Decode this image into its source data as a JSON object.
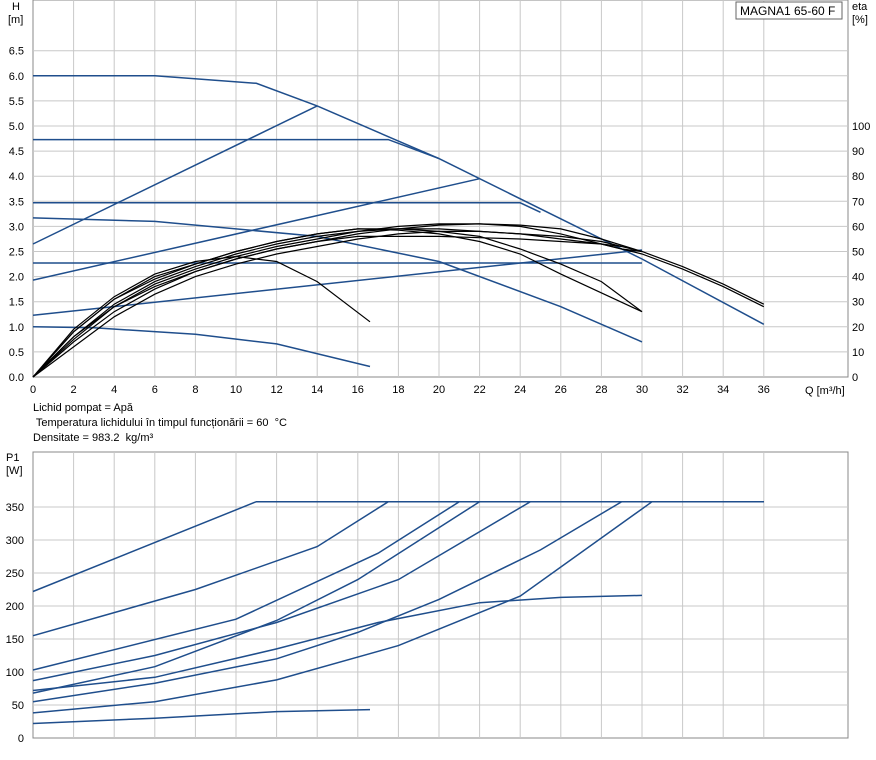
{
  "chart_data": [
    {
      "type": "line",
      "title": "MAGNA1 65-60 F",
      "xlabel": "Q [m³/h]",
      "ylabel": [
        "H",
        "[m]"
      ],
      "ylabel_right": [
        "eta",
        "[%]"
      ],
      "xlim": [
        0,
        36
      ],
      "ylim": [
        0,
        6.5
      ],
      "ylim_right": [
        0,
        100
      ],
      "grid": true,
      "x_ticks": [
        "0",
        "2",
        "4",
        "6",
        "8",
        "10",
        "12",
        "14",
        "16",
        "18",
        "20",
        "22",
        "24",
        "26",
        "28",
        "30",
        "32",
        "34",
        "36"
      ],
      "y_ticks": [
        "0.0",
        "0.5",
        "1.0",
        "1.5",
        "2.0",
        "2.5",
        "3.0",
        "3.5",
        "4.0",
        "4.5",
        "5.0",
        "5.5",
        "6.0",
        "6.5"
      ],
      "y_right_ticks": [
        "0",
        "10",
        "20",
        "30",
        "40",
        "50",
        "60",
        "70",
        "80",
        "90",
        "100"
      ],
      "colors": {
        "blue": "#1f4e8c",
        "black": "#000000",
        "grid": "#c8c8c8"
      },
      "head_series": [
        {
          "points": [
            [
              0,
              6.0
            ],
            [
              6,
              6.0
            ],
            [
              11,
              5.85
            ],
            [
              14,
              5.4
            ],
            [
              20,
              4.35
            ],
            [
              30,
              2.35
            ],
            [
              36,
              1.05
            ]
          ]
        },
        {
          "points": [
            [
              0,
              4.73
            ],
            [
              17.5,
              4.73
            ],
            [
              20,
              4.35
            ]
          ]
        },
        {
          "points": [
            [
              0,
              3.47
            ],
            [
              24,
              3.47
            ],
            [
              25,
              3.28
            ]
          ]
        },
        {
          "points": [
            [
              0,
              2.27
            ],
            [
              30,
              2.27
            ]
          ]
        },
        {
          "points": [
            [
              0,
              1.0
            ],
            [
              3,
              0.98
            ],
            [
              8,
              0.85
            ],
            [
              12,
              0.66
            ],
            [
              16.6,
              0.21
            ]
          ]
        },
        {
          "points": [
            [
              0,
              3.17
            ],
            [
              6,
              3.1
            ],
            [
              14,
              2.8
            ],
            [
              20,
              2.3
            ],
            [
              26,
              1.4
            ],
            [
              30,
              0.7
            ]
          ]
        },
        {
          "points": [
            [
              0,
              2.65
            ],
            [
              14,
              5.4
            ]
          ]
        },
        {
          "points": [
            [
              0,
              1.93
            ],
            [
              22,
              3.95
            ]
          ]
        },
        {
          "points": [
            [
              0,
              1.23
            ],
            [
              30,
              2.53
            ]
          ]
        }
      ],
      "eta_series": [
        {
          "points": [
            [
              0,
              0
            ],
            [
              2,
              19
            ],
            [
              4,
              32
            ],
            [
              6,
              41
            ],
            [
              8,
              46
            ],
            [
              10,
              48
            ],
            [
              12,
              46
            ],
            [
              14,
              38
            ],
            [
              16.6,
              22
            ]
          ]
        },
        {
          "points": [
            [
              0,
              0
            ],
            [
              2,
              18
            ],
            [
              4,
              31
            ],
            [
              6,
              39
            ],
            [
              8,
              45
            ],
            [
              10,
              50
            ],
            [
              12,
              54
            ],
            [
              14,
              57
            ],
            [
              16,
              59
            ],
            [
              18,
              58.5
            ],
            [
              20,
              57
            ],
            [
              22,
              54
            ],
            [
              24,
              49
            ],
            [
              26,
              41
            ],
            [
              30,
              26
            ]
          ]
        },
        {
          "points": [
            [
              0,
              0
            ],
            [
              2,
              18
            ],
            [
              4,
              31
            ],
            [
              6,
              40
            ],
            [
              8,
              45
            ],
            [
              10,
              50
            ],
            [
              12,
              54
            ],
            [
              14,
              57
            ],
            [
              16,
              59
            ],
            [
              18,
              59
            ],
            [
              20,
              58
            ],
            [
              22,
              56
            ],
            [
              24,
              51
            ],
            [
              26,
              45
            ],
            [
              28,
              38
            ],
            [
              30,
              26
            ]
          ]
        },
        {
          "points": [
            [
              0,
              0
            ],
            [
              2,
              16
            ],
            [
              4,
              29
            ],
            [
              6,
              38
            ],
            [
              8,
              44
            ],
            [
              10,
              49
            ],
            [
              12,
              53
            ],
            [
              14,
              56
            ],
            [
              16,
              58
            ],
            [
              18,
              59
            ],
            [
              20,
              59
            ],
            [
              22,
              58
            ],
            [
              24,
              57
            ],
            [
              26,
              55
            ],
            [
              28,
              53
            ],
            [
              29,
              51
            ],
            [
              30,
              50
            ]
          ]
        },
        {
          "points": [
            [
              0,
              0
            ],
            [
              2,
              15
            ],
            [
              4,
              28
            ],
            [
              6,
              37
            ],
            [
              8,
              43
            ],
            [
              10,
              48
            ],
            [
              12,
              52
            ],
            [
              14,
              55
            ],
            [
              16,
              58
            ],
            [
              18,
              60
            ],
            [
              20,
              61
            ],
            [
              22,
              61
            ],
            [
              24,
              60
            ],
            [
              26,
              57
            ],
            [
              28,
              53
            ],
            [
              30,
              49
            ],
            [
              32,
              43
            ],
            [
              34,
              36
            ],
            [
              36,
              28
            ]
          ]
        },
        {
          "points": [
            [
              0,
              0
            ],
            [
              2,
              14
            ],
            [
              4,
              26
            ],
            [
              6,
              35
            ],
            [
              8,
              42
            ],
            [
              10,
              47
            ],
            [
              12,
              51
            ],
            [
              14,
              54
            ],
            [
              16,
              57
            ],
            [
              18,
              59
            ],
            [
              20,
              60.5
            ],
            [
              22,
              61
            ],
            [
              24,
              60.5
            ],
            [
              26,
              59
            ],
            [
              28,
              55
            ],
            [
              30,
              50
            ],
            [
              32,
              44
            ],
            [
              34,
              37
            ],
            [
              36,
              29
            ]
          ]
        },
        {
          "points": [
            [
              0,
              0
            ],
            [
              2,
              12
            ],
            [
              4,
              24
            ],
            [
              6,
              33
            ],
            [
              8,
              40
            ],
            [
              10,
              45
            ],
            [
              12,
              49
            ],
            [
              14,
              52
            ],
            [
              16,
              55
            ],
            [
              18,
              57
            ],
            [
              20,
              58
            ],
            [
              22,
              58
            ],
            [
              24,
              57
            ],
            [
              26,
              56
            ],
            [
              28,
              54
            ],
            [
              30,
              50
            ]
          ]
        },
        {
          "points": [
            [
              0,
              0
            ],
            [
              2,
              16
            ],
            [
              4,
              28
            ],
            [
              6,
              36
            ],
            [
              8,
              42
            ],
            [
              10,
              47
            ],
            [
              12,
              51
            ],
            [
              14,
              54
            ],
            [
              16,
              56
            ],
            [
              18,
              56
            ],
            [
              20,
              56
            ],
            [
              22,
              55.5
            ],
            [
              24,
              55
            ],
            [
              26,
              54
            ],
            [
              28,
              53
            ],
            [
              29,
              52
            ]
          ]
        }
      ]
    },
    {
      "type": "line",
      "xlabel": "",
      "ylabel": [
        "P1",
        "[W]"
      ],
      "xlim": [
        0,
        36
      ],
      "ylim": [
        0,
        380
      ],
      "grid": true,
      "y_ticks": [
        "0",
        "50",
        "100",
        "150",
        "200",
        "250",
        "300",
        "350"
      ],
      "series": [
        {
          "points": [
            [
              0,
              222
            ],
            [
              11,
              358
            ],
            [
              36,
              358
            ]
          ]
        },
        {
          "points": [
            [
              0,
              155
            ],
            [
              8,
              225
            ],
            [
              14,
              290
            ],
            [
              17.5,
              358
            ],
            [
              36,
              358
            ]
          ]
        },
        {
          "points": [
            [
              0,
              103
            ],
            [
              10,
              180
            ],
            [
              17,
              280
            ],
            [
              21,
              358
            ],
            [
              36,
              358
            ]
          ]
        },
        {
          "points": [
            [
              0,
              68
            ],
            [
              6,
              108
            ],
            [
              12,
              178
            ],
            [
              16,
              240
            ],
            [
              22,
              358
            ],
            [
              36,
              358
            ]
          ]
        },
        {
          "points": [
            [
              0,
              87
            ],
            [
              6,
              125
            ],
            [
              12,
              175
            ],
            [
              18,
              240
            ],
            [
              24.5,
              358
            ],
            [
              36,
              358
            ]
          ]
        },
        {
          "points": [
            [
              0,
              55
            ],
            [
              6,
              83
            ],
            [
              12,
              120
            ],
            [
              16,
              160
            ],
            [
              20,
              210
            ],
            [
              25,
              285
            ],
            [
              29,
              358
            ],
            [
              36,
              358
            ]
          ]
        },
        {
          "points": [
            [
              0,
              38
            ],
            [
              6,
              55
            ],
            [
              12,
              88
            ],
            [
              18,
              140
            ],
            [
              24,
              215
            ],
            [
              30.5,
              358
            ],
            [
              36,
              358
            ]
          ]
        },
        {
          "points": [
            [
              0,
              72
            ],
            [
              6,
              92
            ],
            [
              12,
              135
            ],
            [
              17,
              175
            ],
            [
              22,
              205
            ],
            [
              26,
              213
            ],
            [
              30,
              216
            ]
          ]
        },
        {
          "points": [
            [
              0,
              22
            ],
            [
              6,
              30
            ],
            [
              12,
              40
            ],
            [
              16.6,
              43
            ]
          ]
        }
      ]
    }
  ],
  "info": {
    "line1": "Lichid pompat = Apă",
    "line2": " Temperatura lichidului în timpul funcționării = 60  °C",
    "line3": "Densitate = 983.2  kg/m³"
  }
}
